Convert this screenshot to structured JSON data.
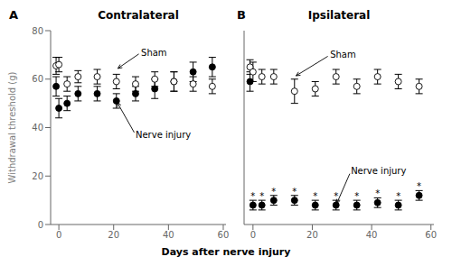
{
  "chart_data": [
    {
      "type": "scatter",
      "title": "Contralateral",
      "label": "A",
      "xlabel": "Days after nerve injury",
      "ylabel": "Withdrawal threshold (g)",
      "x": [
        -1,
        0,
        3,
        7,
        14,
        21,
        28,
        35,
        42,
        49,
        56
      ],
      "series": [
        {
          "marker": "filled_circle",
          "color": "#000000",
          "values": [
            57,
            48,
            50,
            54,
            54,
            51,
            54,
            56,
            59,
            63,
            65
          ],
          "errors": [
            4,
            4,
            3,
            3,
            3,
            3,
            3,
            4,
            4,
            4,
            4
          ]
        },
        {
          "marker": "open_circle",
          "color": "#000000",
          "values": [
            65.5,
            66,
            58,
            61,
            61,
            59,
            58,
            60,
            59,
            58,
            57
          ],
          "errors": [
            3.5,
            3,
            3,
            2.5,
            3,
            3,
            3,
            3,
            4,
            3,
            3
          ]
        }
      ],
      "annotations": [
        {
          "text": "Sham",
          "x": 30,
          "y": 71,
          "arrow_x": 21,
          "arrow_y": 64
        },
        {
          "text": "Nerve injury",
          "x": 28,
          "y": 37,
          "arrow_x": 21,
          "arrow_y": 51
        }
      ],
      "xlim": [
        -3,
        61
      ],
      "xticks": [
        0,
        20,
        40,
        60
      ],
      "ylim": [
        0,
        80
      ],
      "yticks": [
        0,
        20,
        40,
        60,
        80
      ],
      "grid": false
    },
    {
      "type": "scatter",
      "title": "Ipsilateral",
      "label": "B",
      "x": [
        -1,
        0,
        3,
        7,
        14,
        21,
        28,
        35,
        42,
        49,
        56
      ],
      "series": [
        {
          "marker": "filled_circle",
          "color": "#000000",
          "values": [
            59,
            8,
            8,
            10,
            10,
            8,
            8,
            8,
            9,
            8,
            12
          ],
          "errors": [
            4,
            2,
            2,
            2,
            2,
            2,
            2,
            2,
            2,
            2,
            2
          ],
          "star_x": [
            0,
            3,
            7,
            14,
            21,
            28,
            35,
            42,
            49,
            56
          ],
          "star_text": "*"
        },
        {
          "marker": "open_circle",
          "color": "#000000",
          "values": [
            65,
            63,
            61,
            61,
            55,
            56,
            61,
            57,
            61,
            59,
            57
          ],
          "errors": [
            3,
            4,
            3,
            3,
            5,
            3,
            3,
            3,
            3,
            3,
            3
          ]
        }
      ],
      "annotations": [
        {
          "text": "Sham",
          "x": 26,
          "y": 70,
          "arrow_x": 14,
          "arrow_y": 61
        },
        {
          "text": "Nerve injury",
          "x": 33,
          "y": 22,
          "arrow_x": 28,
          "arrow_y": 8
        }
      ],
      "xlim": [
        -3,
        61
      ],
      "xticks": [
        0,
        20,
        40,
        60
      ],
      "ylim": [
        0,
        80
      ],
      "yticks": [
        0,
        20,
        40,
        60,
        80
      ],
      "grid": false,
      "tick_labels": "x"
    }
  ]
}
